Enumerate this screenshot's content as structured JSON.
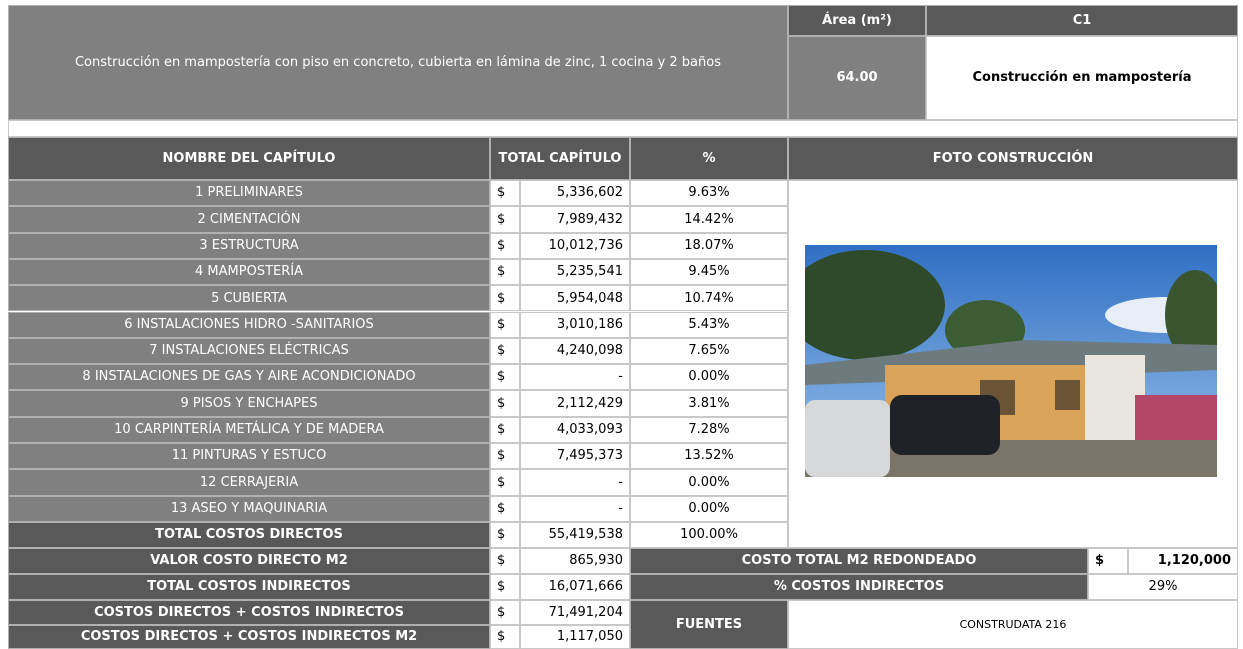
{
  "header": {
    "description": "Construcción en mampostería con piso en concreto, cubierta en lámina de zinc, 1 cocina y 2 baños",
    "area_label": "Área (m²)",
    "area_value": "64.00",
    "code": "C1",
    "code_name": "Construcción en mampostería"
  },
  "table": {
    "columns": [
      "NOMBRE DEL CAPÍTULO",
      "TOTAL CAPÍTULO",
      "%",
      "FOTO CONSTRUCCIÓN"
    ],
    "rows": [
      [
        "1  PRELIMINARES",
        "$",
        "5,336,602",
        "9.63%"
      ],
      [
        "2 CIMENTACIÓN",
        "$",
        "7,989,432",
        "14.42%"
      ],
      [
        "3 ESTRUCTURA",
        "$",
        "10,012,736",
        "18.07%"
      ],
      [
        "4 MAMPOSTERÍA",
        "$",
        "5,235,541",
        "9.45%"
      ],
      [
        "5 CUBIERTA",
        "$",
        "5,954,048",
        "10.74%"
      ],
      [
        "6 INSTALACIONES HIDRO -SANITARIOS",
        "$",
        "3,010,186",
        "5.43%"
      ],
      [
        "7 INSTALACIONES ELÉCTRICAS",
        "$",
        "4,240,098",
        "7.65%"
      ],
      [
        "8 INSTALACIONES DE GAS Y AIRE ACONDICIONADO",
        "$",
        "-",
        "0.00%"
      ],
      [
        "9 PISOS Y ENCHAPES",
        "$",
        "2,112,429",
        "3.81%"
      ],
      [
        "10 CARPINTERÍA METÁLICA Y DE MADERA",
        "$",
        "4,033,093",
        "7.28%"
      ],
      [
        "11 PINTURAS Y ESTUCO",
        "$",
        "7,495,373",
        "13.52%"
      ],
      [
        "12 CERRAJERIA",
        "$",
        "-",
        "0.00%"
      ],
      [
        "13 ASEO Y MAQUINARIA",
        "$",
        "-",
        "0.00%"
      ]
    ],
    "total": [
      "TOTAL COSTOS DIRECTOS",
      "$",
      "55,419,538",
      "100.00%"
    ]
  },
  "summary": [
    [
      "VALOR COSTO DIRECTO M2",
      "$",
      "865,930"
    ],
    [
      "TOTAL COSTOS INDIRECTOS",
      "$",
      "16,071,666"
    ],
    [
      "COSTOS DIRECTOS + COSTOS INDIRECTOS",
      "$",
      "71,491,204"
    ],
    [
      "COSTOS DIRECTOS + COSTOS INDIRECTOS M2",
      "$",
      "1,117,050"
    ]
  ],
  "side": {
    "rounded_label": "COSTO TOTAL M2 REDONDEADO",
    "rounded_currency": "$",
    "rounded_value": "1,120,000",
    "indirect_label": "% COSTOS INDIRECTOS",
    "indirect_value": "29%",
    "sources_label": "FUENTES",
    "sources_value": "CONSTRUDATA 216"
  }
}
